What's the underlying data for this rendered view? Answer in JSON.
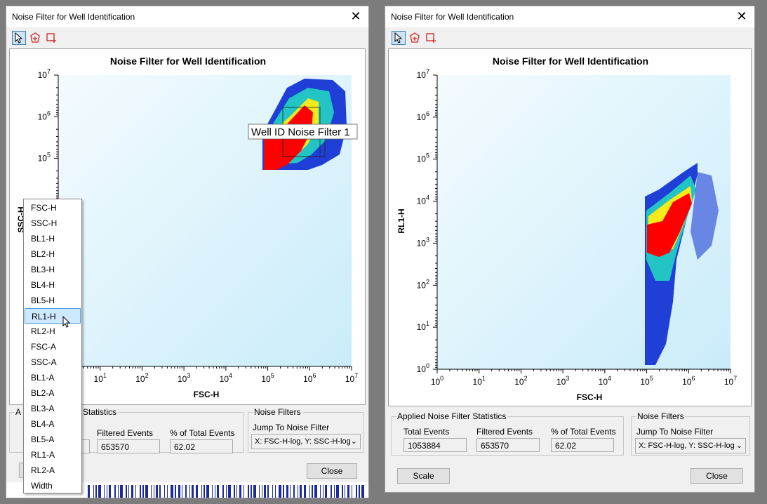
{
  "left_window": {
    "title": "Noise Filter for Well Identification",
    "chart_title": "Noise Filter for Well Identification",
    "x_label": "FSC-H",
    "y_label": "SSC-H",
    "x_ticks": [
      "10^1",
      "10^2",
      "10^3",
      "10^4",
      "10^5",
      "10^6",
      "10^7"
    ],
    "y_ticks": [
      "10^5",
      "10^6",
      "10^7"
    ],
    "gate_label": "Well ID Noise Filter 1",
    "stats_group_fragment_left": "A",
    "stats_group_fragment_right": "Statistics",
    "filtered_events_label": "Filtered Events",
    "percent_label": "% of Total Events",
    "filtered_events_value": "653570",
    "percent_value": "62.02",
    "noise_filters_label": "Noise Filters",
    "jump_label": "Jump To Noise Filter",
    "jump_value": "X: FSC-H-log, Y: SSC-H-log",
    "close_label": "Close"
  },
  "dropdown": {
    "items": [
      "FSC-H",
      "SSC-H",
      "BL1-H",
      "BL2-H",
      "BL3-H",
      "BL4-H",
      "BL5-H",
      "RL1-H",
      "RL2-H",
      "FSC-A",
      "SSC-A",
      "BL1-A",
      "BL2-A",
      "BL3-A",
      "BL4-A",
      "BL5-A",
      "RL1-A",
      "RL2-A",
      "Width"
    ],
    "highlighted": "RL1-H"
  },
  "right_window": {
    "title": "Noise Filter for Well Identification",
    "chart_title": "Noise Filter for Well Identification",
    "x_label": "FSC-H",
    "y_label": "RL1-H",
    "x_ticks": [
      "10^0",
      "10^1",
      "10^2",
      "10^3",
      "10^4",
      "10^5",
      "10^6",
      "10^7"
    ],
    "y_ticks": [
      "10^0",
      "10^1",
      "10^2",
      "10^3",
      "10^4",
      "10^5",
      "10^6",
      "10^7"
    ],
    "stats_group_label": "Applied Noise Filter Statistics",
    "total_events_label": "Total Events",
    "filtered_events_label": "Filtered Events",
    "percent_label": "% of Total Events",
    "total_events_value": "1053884",
    "filtered_events_value": "653570",
    "percent_value": "62.02",
    "noise_filters_label": "Noise Filters",
    "jump_label": "Jump To Noise Filter",
    "jump_value": "X: FSC-H-log, Y: SSC-H-log",
    "scale_label": "Scale",
    "close_label": "Close"
  },
  "colors": {
    "plot_bg_start": "#f4fbfe",
    "plot_bg_end": "#c9ecfa",
    "density_low": "#1f3fd6",
    "density_mid": "#22c4c4",
    "density_high": "#f5ea1a",
    "density_peak": "#ff0000"
  },
  "icons": [
    "pointer-icon",
    "polygon-gate-icon",
    "rectangle-gate-icon",
    "close-icon",
    "chevron-down-icon",
    "mouse-cursor-icon"
  ]
}
